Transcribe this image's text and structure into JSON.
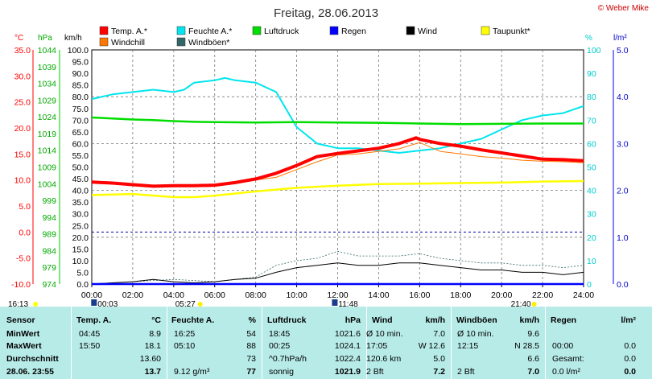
{
  "title": "Freitag, 28.06.2013",
  "brand": "© Weber Mike",
  "axes": {
    "temp_unit": "°C",
    "press_unit": "hPa",
    "speed_unit": "km/h",
    "hum_unit": "%",
    "rain_unit": "l/m²",
    "temp_ticks": [
      "35.0",
      "30.0",
      "25.0",
      "20.0",
      "15.0",
      "10.0",
      "5.0",
      "0.0",
      "-5.0",
      "-10.0"
    ],
    "press_ticks": [
      "1044",
      "1039",
      "1034",
      "1029",
      "1024",
      "1019",
      "1014",
      "1009",
      "1004",
      "999",
      "994",
      "989",
      "984",
      "979",
      "974"
    ],
    "speed_ticks": [
      "100.0",
      "95.0",
      "90.0",
      "85.0",
      "80.0",
      "75.0",
      "70.0",
      "65.0",
      "60.0",
      "55.0",
      "50.0",
      "45.0",
      "40.0",
      "35.0",
      "30.0",
      "25.0",
      "20.0",
      "15.0",
      "10.0",
      "5.0",
      "0.0"
    ],
    "hum_ticks": [
      "100",
      "90",
      "80",
      "70",
      "60",
      "50",
      "40",
      "30",
      "20",
      "10",
      "0"
    ],
    "rain_ticks": [
      "5.0",
      "4.0",
      "3.0",
      "2.0",
      "1.0",
      "0.0"
    ],
    "time_ticks": [
      "00:00",
      "02:00",
      "04:00",
      "06:00",
      "08:00",
      "10:00",
      "12:00",
      "14:00",
      "16:00",
      "18:00",
      "20:00",
      "22:00",
      "24:00"
    ]
  },
  "events": {
    "sunrise": "05:27",
    "sunset": "21:40",
    "moonrise": "16:13",
    "mark1": "00:03",
    "mark2": "11:48"
  },
  "legend": [
    {
      "label": "Temp. A.*",
      "color": "#ff0000"
    },
    {
      "label": "Feuchte A.*",
      "color": "#00e5ee"
    },
    {
      "label": "Luftdruck",
      "color": "#00dd00"
    },
    {
      "label": "Regen",
      "color": "#0000ff"
    },
    {
      "label": "Wind",
      "color": "#000000"
    },
    {
      "label": "Taupunkt*",
      "color": "#ffff00"
    },
    {
      "label": "Windchill",
      "color": "#ff7700"
    },
    {
      "label": "Windböen*",
      "color": "#336666"
    }
  ],
  "chart_data": {
    "type": "line",
    "x_unit": "hours",
    "xlim": [
      0,
      24
    ],
    "series": [
      {
        "name": "Temp. A.*",
        "axis": "temp",
        "x": [
          0,
          1,
          2,
          3,
          4,
          4.75,
          5,
          6,
          7,
          8,
          9,
          10,
          11,
          12,
          13,
          14,
          15,
          15.83,
          16,
          17,
          18,
          19,
          20,
          21,
          22,
          23,
          24
        ],
        "values": [
          9.6,
          9.4,
          9.1,
          8.8,
          8.9,
          8.9,
          8.9,
          9.0,
          9.5,
          10.2,
          11.3,
          12.8,
          14.5,
          15.1,
          15.6,
          16.1,
          17.0,
          18.1,
          17.8,
          17.0,
          16.5,
          15.8,
          15.2,
          14.6,
          14.0,
          13.9,
          13.7
        ]
      },
      {
        "name": "Feuchte A.*",
        "axis": "hum",
        "x": [
          0,
          1,
          2,
          3,
          4,
          4.5,
          5,
          6,
          6.5,
          7,
          8,
          9,
          10,
          11,
          12,
          13,
          14,
          15,
          16,
          17,
          18,
          19,
          20,
          21,
          22,
          23,
          24
        ],
        "values": [
          79,
          81,
          82,
          83,
          82,
          83,
          86,
          87,
          88,
          87,
          86,
          82,
          67,
          60,
          58,
          58,
          57,
          56,
          57,
          58,
          60,
          62,
          66,
          70,
          72,
          73,
          76
        ]
      },
      {
        "name": "Luftdruck",
        "axis": "press",
        "x": [
          0,
          1,
          2,
          3,
          4,
          5,
          6,
          8,
          10,
          12,
          14,
          16,
          18,
          20,
          22,
          24
        ],
        "values": [
          1023.8,
          1023.5,
          1023.2,
          1023.0,
          1022.7,
          1022.5,
          1022.4,
          1022.3,
          1022.4,
          1022.3,
          1022.2,
          1022.0,
          1021.8,
          1021.9,
          1022.0,
          1022.0
        ]
      },
      {
        "name": "Taupunkt*",
        "axis": "temp",
        "x": [
          0,
          2,
          4,
          5,
          6,
          8,
          10,
          12,
          14,
          16,
          18,
          20,
          22,
          24
        ],
        "values": [
          7.1,
          7.3,
          6.7,
          6.7,
          7.0,
          7.8,
          8.5,
          8.9,
          9.2,
          9.3,
          9.4,
          9.5,
          9.7,
          9.8
        ]
      },
      {
        "name": "Windchill",
        "axis": "temp",
        "x": [
          0,
          2,
          4,
          5,
          6,
          8,
          9,
          10,
          11,
          12,
          13,
          14,
          15,
          16,
          17,
          18,
          19,
          20,
          21,
          22,
          23,
          24
        ],
        "values": [
          9.6,
          9.1,
          8.9,
          8.9,
          9.0,
          10.0,
          10.5,
          12.0,
          13.5,
          14.8,
          15.0,
          15.5,
          16.0,
          17.2,
          15.5,
          15.0,
          14.5,
          14.2,
          13.8,
          13.6,
          13.5,
          13.3
        ]
      },
      {
        "name": "Wind",
        "axis": "speed",
        "x": [
          0,
          1,
          2,
          3,
          4,
          5,
          6,
          7,
          8,
          9,
          10,
          11,
          12,
          13,
          14,
          15,
          16,
          17,
          18,
          19,
          20,
          21,
          22,
          23,
          24
        ],
        "values": [
          0,
          0.5,
          1,
          2,
          1,
          0.5,
          1,
          2,
          2.5,
          5,
          7,
          8,
          9,
          8,
          8,
          9,
          9,
          8,
          7,
          6,
          6,
          5,
          5,
          4,
          5
        ]
      },
      {
        "name": "Windböen*",
        "axis": "speed",
        "x": [
          0,
          2,
          4,
          6,
          8,
          9,
          10,
          11,
          12,
          13,
          14,
          15,
          16,
          17,
          18,
          19,
          20,
          21,
          22,
          23,
          24
        ],
        "values": [
          0,
          1,
          2,
          1,
          3,
          8,
          10,
          11,
          14,
          12,
          12,
          12,
          13,
          11,
          10,
          9,
          9,
          8,
          8,
          7,
          8
        ]
      },
      {
        "name": "Regen",
        "axis": "rain",
        "x": [
          0,
          24
        ],
        "values": [
          0,
          0
        ]
      }
    ]
  },
  "table": {
    "headers": [
      "Sensor",
      "Temp. A.",
      "°C",
      "Feuchte A.",
      "%",
      "Luftdruck",
      "hPa",
      "Wind",
      "km/h",
      "Windböen",
      "km/h",
      "Regen",
      "l/m²"
    ],
    "rows": [
      {
        "label": "MinWert",
        "t_time": "04:45",
        "t_val": "8.9",
        "h_time": "16:25",
        "h_val": "54",
        "p_time": "18:45",
        "p_val": "1021.6",
        "w_desc": "Ø 10 min.",
        "w_val": "7.0",
        "g_desc": "Ø 10 min.",
        "g_val": "9.6",
        "r_desc": "",
        "r_val": ""
      },
      {
        "label": "MaxWert",
        "t_time": "15:50",
        "t_val": "18.1",
        "h_time": "05:10",
        "h_val": "88",
        "p_time": "00:25",
        "p_val": "1024.1",
        "w_desc": "17:05",
        "w_val": "W 12.6",
        "g_desc": "12:15",
        "g_val": "N 28.5",
        "r_desc": "00:00",
        "r_val": "0.0"
      },
      {
        "label": "Durchschnitt",
        "t_time": "",
        "t_val": "13.60",
        "h_time": "",
        "h_val": "73",
        "p_time": "^0.7hPa/h",
        "p_val": "1022.4",
        "w_desc": "120.6 km",
        "w_val": "5.0",
        "g_desc": "",
        "g_val": "6.6",
        "r_desc": "Gesamt:",
        "r_val": "0.0"
      },
      {
        "label": "28.06. 23:55",
        "t_time": "",
        "t_val": "13.7",
        "h_time": "9.12 g/m³",
        "h_val": "77",
        "p_time": "sonnig",
        "p_val": "1021.9",
        "w_desc": "2 Bft",
        "w_val": "7.2",
        "g_desc": "2 Bft",
        "g_val": "7.0",
        "r_desc": "0.0 l/m²",
        "r_val": "0.0"
      }
    ]
  }
}
